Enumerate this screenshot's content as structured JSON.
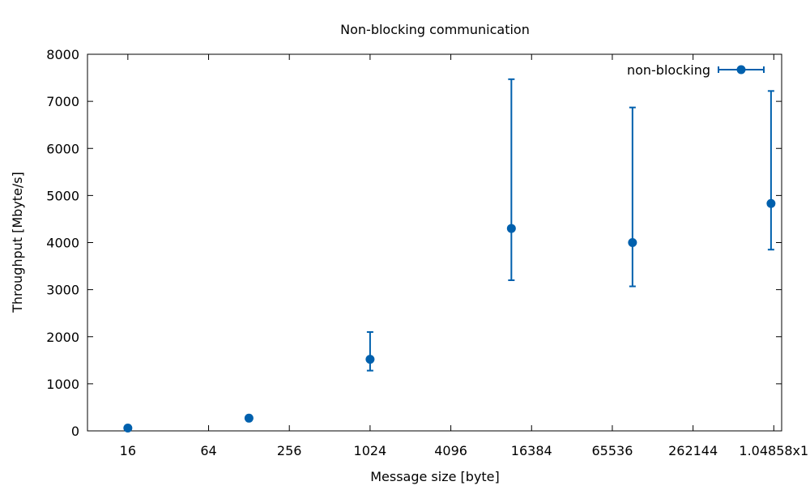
{
  "chart_data": {
    "type": "scatter",
    "title": "Non-blocking communication",
    "xlabel": "Message size [byte]",
    "ylabel": "Throughput [Mbyte/s]",
    "x_scale": "log2",
    "xlim": [
      8,
      1200000
    ],
    "ylim": [
      0,
      8000
    ],
    "x_ticks": [
      {
        "value": 16,
        "label": "16"
      },
      {
        "value": 64,
        "label": "64"
      },
      {
        "value": 256,
        "label": "256"
      },
      {
        "value": 1024,
        "label": "1024"
      },
      {
        "value": 4096,
        "label": "4096"
      },
      {
        "value": 16384,
        "label": "16384"
      },
      {
        "value": 65536,
        "label": "65536"
      },
      {
        "value": 262144,
        "label": "262144"
      },
      {
        "value": 1048576,
        "label": "1.04858x1"
      }
    ],
    "y_ticks": [
      {
        "value": 0,
        "label": "0"
      },
      {
        "value": 1000,
        "label": "1000"
      },
      {
        "value": 2000,
        "label": "2000"
      },
      {
        "value": 3000,
        "label": "3000"
      },
      {
        "value": 4000,
        "label": "4000"
      },
      {
        "value": 5000,
        "label": "5000"
      },
      {
        "value": 6000,
        "label": "6000"
      },
      {
        "value": 7000,
        "label": "7000"
      },
      {
        "value": 8000,
        "label": "8000"
      }
    ],
    "grid": false,
    "legend_position": "top-right",
    "series": [
      {
        "name": "non-blocking",
        "color": "#0060ad",
        "marker": "circle",
        "error_bars": true,
        "points": [
          {
            "x": 16,
            "y": 60,
            "ymin": 15,
            "ymax": 110
          },
          {
            "x": 128,
            "y": 270,
            "ymin": 250,
            "ymax": 290
          },
          {
            "x": 1024,
            "y": 1520,
            "ymin": 1280,
            "ymax": 2100
          },
          {
            "x": 11585,
            "y": 4300,
            "ymin": 3200,
            "ymax": 7470
          },
          {
            "x": 92682,
            "y": 4000,
            "ymin": 3070,
            "ymax": 6870
          },
          {
            "x": 1000000,
            "y": 4830,
            "ymin": 3850,
            "ymax": 7220
          }
        ]
      }
    ]
  }
}
